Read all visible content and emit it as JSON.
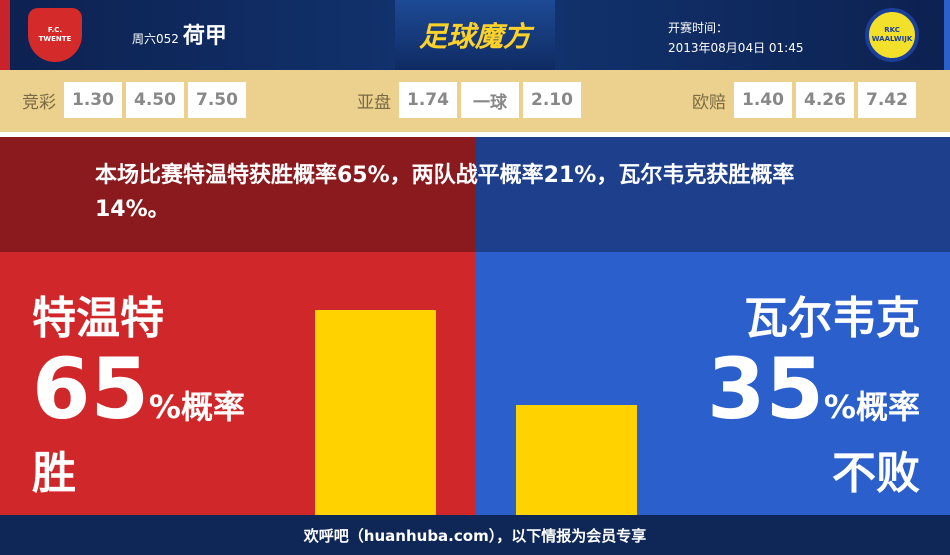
{
  "header": {
    "home_logo_text": "F.C. TWENTE",
    "away_logo_text": "RKC WAALWIJK",
    "match_no": "周六052",
    "league": "荷甲",
    "brand": "足球魔方",
    "time_label": "开赛时间：",
    "time_value": "2013年08月04日 01:45"
  },
  "odds": {
    "jingcai": {
      "label": "竞彩",
      "values": [
        "1.30",
        "4.50",
        "7.50"
      ]
    },
    "yapan": {
      "label": "亚盘",
      "values": [
        "1.74",
        "一球",
        "2.10"
      ]
    },
    "ouzhi": {
      "label": "欧赔",
      "values": [
        "1.40",
        "4.26",
        "7.42"
      ]
    }
  },
  "summary": "本场比赛特温特获胜概率65%，两队战平概率21%，瓦尔韦克获胜概率14%。",
  "home": {
    "name": "特温特",
    "pct": "65",
    "pct_suffix": "%概率",
    "result": "胜",
    "value": 65,
    "color": "#d0282a"
  },
  "away": {
    "name": "瓦尔韦克",
    "pct": "35",
    "pct_suffix": "%概率",
    "result": "不败",
    "value": 35,
    "color": "#2a5fcc"
  },
  "bar_color": "#ffd200",
  "footer": "欢呼吧（huanhuba.com），以下情报为会员专享"
}
